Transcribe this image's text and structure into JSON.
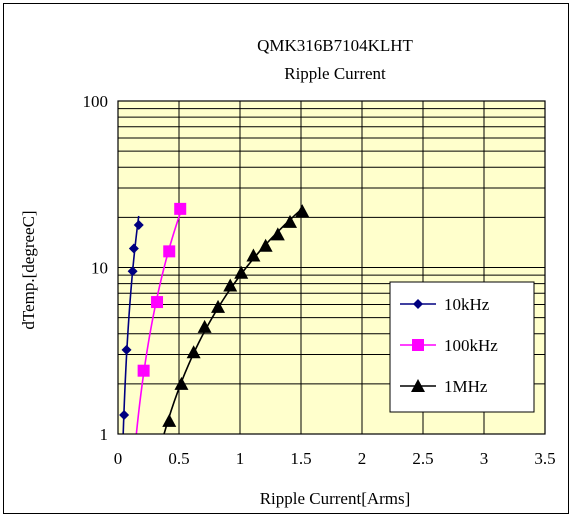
{
  "chart_data": {
    "type": "line",
    "title": "QMK316B7104KLHT",
    "subtitle": "Ripple Current",
    "xlabel": "Ripple Current[Arms]",
    "ylabel": "dTemp.[degreeC]",
    "xlim": [
      0,
      3.5
    ],
    "ylim": [
      1,
      100
    ],
    "yscale": "log",
    "x_ticks": [
      "0",
      "0.5",
      "1",
      "1.5",
      "2",
      "2.5",
      "3",
      "3.5"
    ],
    "y_ticks": [
      "1",
      "10",
      "100"
    ],
    "grid": true,
    "legend_position": "right",
    "colors": {
      "plot_bg": "#ffffcc",
      "grid": "#000000"
    },
    "series": [
      {
        "name": "10kHz",
        "color": "#000080",
        "marker": "diamond",
        "x": [
          0.05,
          0.07,
          0.12,
          0.13,
          0.17
        ],
        "y": [
          1.3,
          3.2,
          9.5,
          13,
          18
        ]
      },
      {
        "name": "100kHz",
        "color": "#ff00ff",
        "marker": "square",
        "x": [
          0.21,
          0.32,
          0.42,
          0.51
        ],
        "y": [
          2.4,
          6.2,
          12.5,
          22.5
        ]
      },
      {
        "name": "1MHz",
        "color": "#000000",
        "marker": "triangle",
        "x": [
          0.42,
          0.52,
          0.62,
          0.71,
          0.82,
          0.92,
          1.01,
          1.11,
          1.21,
          1.31,
          1.41,
          1.51
        ],
        "y": [
          1.2,
          2.0,
          3.1,
          4.4,
          5.8,
          7.8,
          9.3,
          11.8,
          13.5,
          15.8,
          18.8,
          21.8
        ]
      }
    ]
  }
}
